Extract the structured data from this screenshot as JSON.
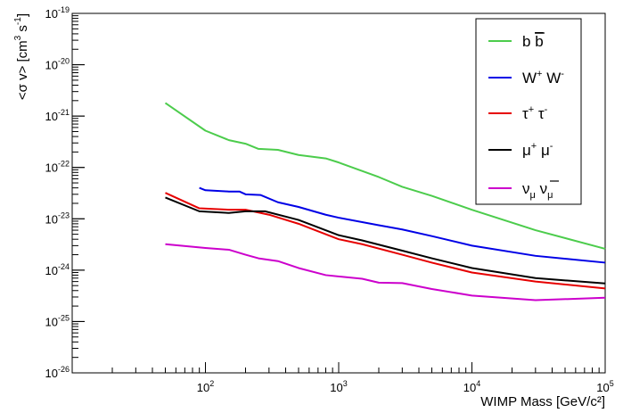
{
  "chart_data": {
    "type": "line",
    "title": "",
    "xlabel": "WIMP Mass [GeV/c²]",
    "ylabel_parts": [
      "<σ v> [cm",
      "3",
      " s",
      "-1",
      "]"
    ],
    "x_scale": "log",
    "y_scale": "log",
    "xlim": [
      10,
      100000
    ],
    "ylim": [
      1e-26,
      1e-19
    ],
    "grid": false,
    "legend_position": "top-right",
    "x_major_ticks": [
      {
        "value": 100,
        "base": "10",
        "exp": "2"
      },
      {
        "value": 1000,
        "base": "10",
        "exp": "3"
      },
      {
        "value": 10000,
        "base": "10",
        "exp": "4"
      },
      {
        "value": 100000,
        "base": "10",
        "exp": "5"
      }
    ],
    "y_major_ticks": [
      {
        "value": 1e-26,
        "base": "10",
        "exp": "-26"
      },
      {
        "value": 1e-25,
        "base": "10",
        "exp": "-25"
      },
      {
        "value": 1e-24,
        "base": "10",
        "exp": "-24"
      },
      {
        "value": 1e-23,
        "base": "10",
        "exp": "-23"
      },
      {
        "value": 1e-22,
        "base": "10",
        "exp": "-22"
      },
      {
        "value": 1e-21,
        "base": "10",
        "exp": "-21"
      },
      {
        "value": 1e-20,
        "base": "10",
        "exp": "-20"
      },
      {
        "value": 1e-19,
        "base": "10",
        "exp": "-19"
      }
    ],
    "series": [
      {
        "key": "bb",
        "name_parts": [
          "b ",
          "b",
          ""
        ],
        "name_style": "overline",
        "color": "#4ccc4c",
        "points": [
          [
            50,
            1.8e-21
          ],
          [
            100,
            5.2e-22
          ],
          [
            150,
            3.4e-22
          ],
          [
            200,
            2.9e-22
          ],
          [
            250,
            2.3e-22
          ],
          [
            350,
            2.2e-22
          ],
          [
            500,
            1.75e-22
          ],
          [
            800,
            1.5e-22
          ],
          [
            1000,
            1.25e-22
          ],
          [
            2000,
            6.5e-23
          ],
          [
            3000,
            4.2e-23
          ],
          [
            5000,
            2.8e-23
          ],
          [
            10000,
            1.5e-23
          ],
          [
            30000,
            6e-24
          ],
          [
            100000,
            2.6e-24
          ]
        ]
      },
      {
        "key": "ww",
        "name_parts": [
          "W",
          "+",
          " W",
          "-"
        ],
        "name_style": "superscript",
        "color": "#0000e6",
        "points": [
          [
            90,
            4e-23
          ],
          [
            100,
            3.6e-23
          ],
          [
            150,
            3.4e-23
          ],
          [
            180,
            3.4e-23
          ],
          [
            200,
            3e-23
          ],
          [
            260,
            2.9e-23
          ],
          [
            350,
            2.1e-23
          ],
          [
            500,
            1.7e-23
          ],
          [
            800,
            1.2e-23
          ],
          [
            1000,
            1.05e-23
          ],
          [
            2000,
            7.5e-24
          ],
          [
            3000,
            6.2e-24
          ],
          [
            5000,
            4.6e-24
          ],
          [
            10000,
            3e-24
          ],
          [
            30000,
            1.9e-24
          ],
          [
            100000,
            1.4e-24
          ]
        ]
      },
      {
        "key": "tautau",
        "name_parts": [
          "τ",
          "+",
          " τ",
          "-"
        ],
        "name_style": "superscript",
        "color": "#e60000",
        "points": [
          [
            50,
            3.2e-23
          ],
          [
            90,
            1.6e-23
          ],
          [
            150,
            1.5e-23
          ],
          [
            200,
            1.5e-23
          ],
          [
            300,
            1.2e-23
          ],
          [
            500,
            8e-24
          ],
          [
            1000,
            4e-24
          ],
          [
            1500,
            3.2e-24
          ],
          [
            3000,
            2e-24
          ],
          [
            5000,
            1.4e-24
          ],
          [
            10000,
            9e-25
          ],
          [
            30000,
            6e-25
          ],
          [
            100000,
            4.4e-25
          ]
        ]
      },
      {
        "key": "mumu",
        "name_parts": [
          "μ",
          "+",
          " μ",
          "-"
        ],
        "name_style": "superscript",
        "color": "#000000",
        "points": [
          [
            50,
            2.6e-23
          ],
          [
            90,
            1.4e-23
          ],
          [
            150,
            1.3e-23
          ],
          [
            200,
            1.4e-23
          ],
          [
            280,
            1.4e-23
          ],
          [
            500,
            9.5e-24
          ],
          [
            1000,
            4.8e-24
          ],
          [
            1500,
            3.8e-24
          ],
          [
            3000,
            2.4e-24
          ],
          [
            5000,
            1.7e-24
          ],
          [
            10000,
            1.1e-24
          ],
          [
            30000,
            7e-25
          ],
          [
            100000,
            5.5e-25
          ]
        ]
      },
      {
        "key": "nunu",
        "name_parts": [
          "ν",
          "μ",
          " ν",
          "μ"
        ],
        "name_style": "subscript_overline",
        "color": "#cc00cc",
        "points": [
          [
            50,
            3.2e-24
          ],
          [
            100,
            2.7e-24
          ],
          [
            150,
            2.5e-24
          ],
          [
            200,
            2e-24
          ],
          [
            250,
            1.7e-24
          ],
          [
            350,
            1.5e-24
          ],
          [
            500,
            1.1e-24
          ],
          [
            800,
            8e-25
          ],
          [
            1500,
            6.8e-25
          ],
          [
            2000,
            5.7e-25
          ],
          [
            3000,
            5.6e-25
          ],
          [
            5000,
            4.3e-25
          ],
          [
            10000,
            3.2e-25
          ],
          [
            30000,
            2.6e-25
          ],
          [
            100000,
            2.9e-25
          ]
        ]
      }
    ]
  }
}
